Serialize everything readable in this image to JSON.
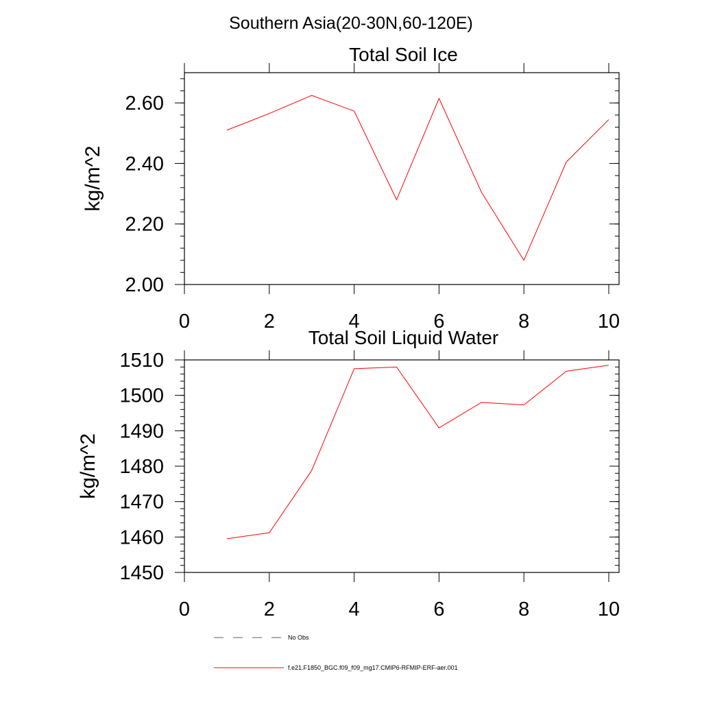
{
  "figure_title": "Southern Asia(20-30N,60-120E)",
  "chart_data": [
    {
      "type": "line",
      "title": "Total Soil Ice",
      "xlabel": "",
      "ylabel": "kg/m^2",
      "xlim": [
        0,
        10
      ],
      "ylim": [
        2.0,
        2.7
      ],
      "x_ticks": [
        "0",
        "2",
        "4",
        "6",
        "8",
        "10"
      ],
      "y_ticks": [
        "2.00",
        "2.20",
        "2.40",
        "2.60"
      ],
      "x_tick_values": [
        0,
        2,
        4,
        6,
        8,
        10
      ],
      "y_tick_values": [
        2.0,
        2.2,
        2.4,
        2.6
      ],
      "y_minor_step": 0.04,
      "series": [
        {
          "name": "f.e21.F1850_BGC.f09_f09_mg17.CMIP6-RFMIP-ERF-aer.001",
          "color": "#ff0000",
          "x": [
            1,
            2,
            3,
            4,
            5,
            6,
            7,
            8,
            9,
            10
          ],
          "values": [
            2.51,
            2.565,
            2.625,
            2.573,
            2.28,
            2.615,
            2.305,
            2.08,
            2.405,
            2.545
          ]
        }
      ]
    },
    {
      "type": "line",
      "title": "Total Soil Liquid Water",
      "xlabel": "",
      "ylabel": "kg/m^2",
      "xlim": [
        0,
        10
      ],
      "ylim": [
        1450,
        1510
      ],
      "x_ticks": [
        "0",
        "2",
        "4",
        "6",
        "8",
        "10"
      ],
      "y_ticks": [
        "1450",
        "1460",
        "1470",
        "1480",
        "1490",
        "1500",
        "1510"
      ],
      "x_tick_values": [
        0,
        2,
        4,
        6,
        8,
        10
      ],
      "y_tick_values": [
        1450,
        1460,
        1470,
        1480,
        1490,
        1500,
        1510
      ],
      "y_minor_step": 2,
      "series": [
        {
          "name": "f.e21.F1850_BGC.f09_f09_mg17.CMIP6-RFMIP-ERF-aer.001",
          "color": "#ff0000",
          "x": [
            1,
            2,
            3,
            4,
            5,
            6,
            7,
            8,
            9,
            10
          ],
          "values": [
            1459.5,
            1461.2,
            1478.8,
            1507.5,
            1508.0,
            1490.8,
            1498.0,
            1497.3,
            1506.8,
            1508.5
          ]
        }
      ]
    }
  ],
  "legend": {
    "entries": [
      {
        "label": "No Obs",
        "style": "dashed",
        "color": "#5a5a78"
      },
      {
        "label": "f.e21.F1850_BGC.f09_f09_mg17.CMIP6-RFMIP-ERF-aer.001",
        "style": "solid",
        "color": "#ff0000"
      }
    ]
  }
}
